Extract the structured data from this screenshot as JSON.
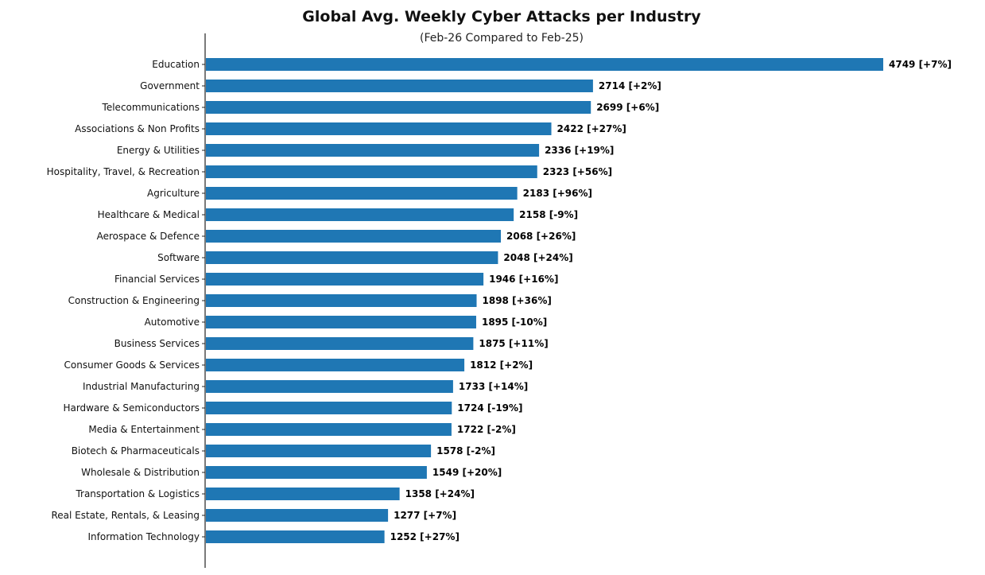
{
  "chart_data": {
    "type": "bar",
    "orientation": "horizontal",
    "title": "Global Avg. Weekly Cyber Attacks per Industry",
    "subtitle": "(Feb-26 Compared to Feb-25)",
    "xlabel": "",
    "ylabel": "",
    "xlim": [
      0,
      4749
    ],
    "grid": false,
    "bar_color": "#1f77b4",
    "categories": [
      "Education",
      "Government",
      "Telecommunications",
      "Associations & Non Profits",
      "Energy & Utilities",
      "Hospitality, Travel, & Recreation",
      "Agriculture",
      "Healthcare & Medical",
      "Aerospace & Defence",
      "Software",
      "Financial Services",
      "Construction & Engineering",
      "Automotive",
      "Business Services",
      "Consumer Goods & Services",
      "Industrial Manufacturing",
      "Hardware & Semiconductors",
      "Media & Entertainment",
      "Biotech & Pharmaceuticals",
      "Wholesale & Distribution",
      "Transportation & Logistics",
      "Real Estate, Rentals, & Leasing",
      "Information Technology"
    ],
    "values": [
      4749,
      2714,
      2699,
      2422,
      2336,
      2323,
      2183,
      2158,
      2068,
      2048,
      1946,
      1898,
      1895,
      1875,
      1812,
      1733,
      1724,
      1722,
      1578,
      1549,
      1358,
      1277,
      1252
    ],
    "changes": [
      "+7%",
      "+2%",
      "+6%",
      "+27%",
      "+19%",
      "+56%",
      "+96%",
      "-9%",
      "+26%",
      "+24%",
      "+16%",
      "+36%",
      "-10%",
      "+11%",
      "+2%",
      "+14%",
      "-19%",
      "-2%",
      "-2%",
      "+20%",
      "+24%",
      "+7%",
      "+27%"
    ]
  }
}
